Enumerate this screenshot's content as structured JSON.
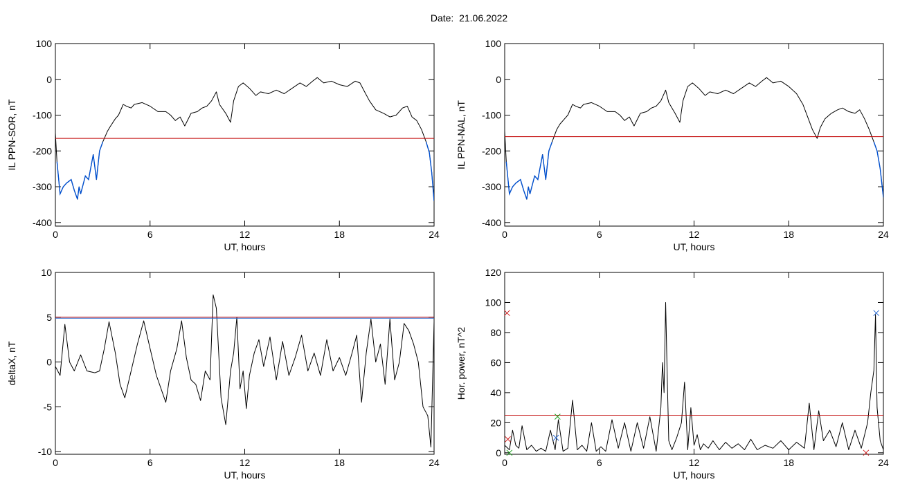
{
  "figure_title": "Date:  21.06.2022",
  "colors": {
    "trace": "#000000",
    "threshold": "#c00000",
    "below": "#0050d0",
    "marker_blue": "#2a6ad0",
    "marker_green": "#20a020",
    "marker_red": "#d02020"
  },
  "chart_data": [
    {
      "type": "line",
      "ylabel": "IL PPN-SOR, nT",
      "xlabel": "UT, hours",
      "xlim": [
        0,
        24
      ],
      "ylim": [
        -410,
        100
      ],
      "xticks": [
        0,
        6,
        12,
        18,
        24
      ],
      "yticks": [
        100,
        0,
        -100,
        -200,
        -300,
        -400
      ],
      "threshold": -165,
      "series": [
        {
          "x": [
            0,
            0.1,
            0.3,
            0.5,
            0.7,
            1.0,
            1.2,
            1.4,
            1.5,
            1.6,
            1.9,
            2.1,
            2.4,
            2.6,
            2.8,
            3.0,
            3.3,
            3.5,
            3.8,
            4.0,
            4.3,
            4.5,
            4.8,
            5.0,
            5.5,
            6.0,
            6.5,
            7.0,
            7.3,
            7.6,
            7.9,
            8.2,
            8.6,
            9.0,
            9.3,
            9.6,
            9.9,
            10.2,
            10.4,
            10.8,
            11.1,
            11.3,
            11.6,
            11.9,
            12.3,
            12.7,
            13.0,
            13.5,
            14.0,
            14.5,
            15.0,
            15.5,
            15.9,
            16.3,
            16.6,
            17.0,
            17.5,
            18.0,
            18.5,
            19.0,
            19.3,
            19.6,
            19.9,
            20.3,
            20.8,
            21.2,
            21.6,
            22.0,
            22.3,
            22.6,
            22.9,
            23.2,
            23.5,
            23.7,
            23.85,
            24.0
          ],
          "y": [
            -150,
            -230,
            -320,
            -300,
            -290,
            -280,
            -310,
            -335,
            -300,
            -320,
            -270,
            -280,
            -210,
            -280,
            -200,
            -175,
            -145,
            -130,
            -110,
            -100,
            -70,
            -75,
            -80,
            -70,
            -65,
            -75,
            -90,
            -90,
            -100,
            -115,
            -105,
            -130,
            -95,
            -90,
            -80,
            -75,
            -60,
            -35,
            -70,
            -95,
            -120,
            -60,
            -20,
            -10,
            -25,
            -45,
            -35,
            -40,
            -30,
            -40,
            -25,
            -10,
            -20,
            -5,
            5,
            -10,
            -5,
            -15,
            -20,
            -5,
            -10,
            -35,
            -60,
            -85,
            -95,
            -105,
            -100,
            -80,
            -75,
            -105,
            -115,
            -140,
            -175,
            -205,
            -260,
            -340
          ]
        }
      ]
    },
    {
      "type": "line",
      "ylabel": "IL PPN-NAL, nT",
      "xlabel": "UT, hours",
      "xlim": [
        0,
        24
      ],
      "ylim": [
        -410,
        100
      ],
      "xticks": [
        0,
        6,
        12,
        18,
        24
      ],
      "yticks": [
        100,
        0,
        -100,
        -200,
        -300,
        -400
      ],
      "threshold": -160,
      "series": [
        {
          "x": [
            0,
            0.1,
            0.3,
            0.5,
            0.7,
            1.0,
            1.2,
            1.4,
            1.5,
            1.6,
            1.9,
            2.1,
            2.4,
            2.6,
            2.8,
            3.0,
            3.3,
            3.5,
            3.8,
            4.0,
            4.3,
            4.5,
            4.8,
            5.0,
            5.5,
            6.0,
            6.5,
            7.0,
            7.3,
            7.6,
            7.9,
            8.2,
            8.6,
            9.0,
            9.3,
            9.6,
            9.9,
            10.2,
            10.4,
            10.8,
            11.1,
            11.3,
            11.6,
            11.9,
            12.3,
            12.7,
            13.0,
            13.5,
            14.0,
            14.5,
            15.0,
            15.5,
            15.9,
            16.3,
            16.6,
            17.0,
            17.5,
            18.0,
            18.5,
            18.9,
            19.2,
            19.5,
            19.8,
            20.0,
            20.3,
            20.7,
            21.1,
            21.4,
            21.8,
            22.2,
            22.5,
            22.8,
            23.1,
            23.4,
            23.6,
            23.8,
            24.0
          ],
          "y": [
            -145,
            -230,
            -320,
            -300,
            -290,
            -280,
            -310,
            -335,
            -300,
            -320,
            -270,
            -280,
            -210,
            -280,
            -200,
            -175,
            -140,
            -125,
            -110,
            -100,
            -70,
            -75,
            -80,
            -70,
            -65,
            -75,
            -90,
            -90,
            -100,
            -115,
            -105,
            -130,
            -95,
            -90,
            -80,
            -75,
            -60,
            -30,
            -65,
            -95,
            -120,
            -60,
            -20,
            -10,
            -25,
            -45,
            -35,
            -40,
            -30,
            -40,
            -25,
            -10,
            -20,
            -5,
            5,
            -10,
            -5,
            -20,
            -40,
            -70,
            -105,
            -140,
            -165,
            -135,
            -110,
            -95,
            -85,
            -80,
            -90,
            -95,
            -85,
            -110,
            -140,
            -175,
            -200,
            -250,
            -330
          ]
        }
      ]
    },
    {
      "type": "line",
      "ylabel": "deltaX, nT",
      "xlabel": "UT, hours",
      "xlim": [
        0,
        24
      ],
      "ylim": [
        -10.3,
        10
      ],
      "xticks": [
        0,
        6,
        12,
        18,
        24
      ],
      "yticks": [
        10,
        5,
        0,
        -5,
        -10
      ],
      "threshold": 5,
      "series": [
        {
          "x": [
            0,
            0.3,
            0.6,
            0.9,
            1.2,
            1.6,
            2.0,
            2.5,
            2.8,
            3.1,
            3.4,
            3.8,
            4.1,
            4.4,
            4.8,
            5.2,
            5.6,
            6.0,
            6.4,
            6.7,
            7.0,
            7.3,
            7.7,
            8.0,
            8.3,
            8.6,
            8.9,
            9.2,
            9.5,
            9.8,
            10.0,
            10.2,
            10.5,
            10.8,
            11.1,
            11.3,
            11.5,
            11.7,
            11.9,
            12.1,
            12.3,
            12.6,
            12.9,
            13.2,
            13.6,
            14.0,
            14.4,
            14.8,
            15.2,
            15.6,
            16.0,
            16.4,
            16.8,
            17.2,
            17.6,
            18.0,
            18.4,
            18.8,
            19.1,
            19.4,
            19.7,
            20.0,
            20.3,
            20.6,
            20.9,
            21.2,
            21.5,
            21.8,
            22.1,
            22.4,
            22.7,
            23.0,
            23.3,
            23.6,
            23.8,
            24.0
          ],
          "y": [
            -0.5,
            -1.5,
            4.2,
            0,
            -1,
            0.8,
            -1,
            -1.2,
            -1,
            1.5,
            4.5,
            1,
            -2.5,
            -4,
            -1,
            2,
            4.6,
            1.5,
            -1.5,
            -3,
            -4.5,
            -1,
            1.5,
            4.6,
            0.5,
            -2,
            -2.5,
            -4.3,
            -1,
            -2,
            7.5,
            6,
            -4,
            -7,
            -1,
            1,
            5,
            -3,
            -1,
            -5.2,
            -1.5,
            1,
            2.5,
            -0.5,
            2.8,
            -2,
            2.3,
            -1.5,
            0.5,
            3,
            -1,
            1,
            -1.5,
            2.5,
            -1,
            0.5,
            -1.5,
            1,
            3,
            -4.5,
            1,
            4.8,
            0,
            2,
            -2.5,
            4.8,
            -2,
            0,
            4.3,
            3.5,
            2,
            0,
            -5,
            -6,
            -9.5,
            4.5
          ]
        }
      ]
    },
    {
      "type": "line",
      "ylabel": "Hor. power, nT^2",
      "xlabel": "UT, hours",
      "xlim": [
        0,
        24
      ],
      "ylim": [
        -1,
        120
      ],
      "xticks": [
        0,
        6,
        12,
        18,
        24
      ],
      "yticks": [
        120,
        100,
        80,
        60,
        40,
        20,
        0
      ],
      "threshold": 25,
      "series": [
        {
          "x": [
            0,
            0.3,
            0.5,
            0.7,
            0.9,
            1.1,
            1.4,
            1.7,
            2.0,
            2.3,
            2.6,
            2.9,
            3.2,
            3.4,
            3.7,
            4.0,
            4.3,
            4.6,
            4.9,
            5.2,
            5.5,
            5.8,
            6.1,
            6.4,
            6.8,
            7.2,
            7.6,
            8.0,
            8.4,
            8.8,
            9.2,
            9.6,
            9.9,
            10.0,
            10.1,
            10.2,
            10.3,
            10.4,
            10.6,
            10.9,
            11.2,
            11.4,
            11.6,
            11.8,
            12.0,
            12.2,
            12.4,
            12.6,
            12.9,
            13.2,
            13.6,
            14.0,
            14.4,
            14.8,
            15.2,
            15.6,
            16.0,
            16.5,
            17.0,
            17.5,
            18.0,
            18.5,
            19.0,
            19.3,
            19.6,
            19.9,
            20.2,
            20.6,
            21.0,
            21.4,
            21.8,
            22.2,
            22.6,
            23.0,
            23.2,
            23.4,
            23.5,
            23.6,
            23.8,
            24.0
          ],
          "y": [
            5,
            2,
            15,
            5,
            3,
            18,
            2,
            5,
            1,
            3,
            1,
            15,
            2,
            22,
            1,
            3,
            35,
            2,
            5,
            1,
            20,
            1,
            4,
            1,
            22,
            3,
            20,
            1,
            20,
            3,
            24,
            1,
            30,
            60,
            40,
            100,
            50,
            8,
            2,
            10,
            20,
            47,
            2,
            30,
            5,
            12,
            2,
            6,
            3,
            8,
            2,
            7,
            3,
            6,
            2,
            9,
            2,
            5,
            3,
            8,
            2,
            7,
            3,
            33,
            2,
            28,
            8,
            15,
            4,
            20,
            2,
            15,
            3,
            20,
            40,
            55,
            92,
            30,
            8,
            2
          ]
        }
      ]
    }
  ]
}
